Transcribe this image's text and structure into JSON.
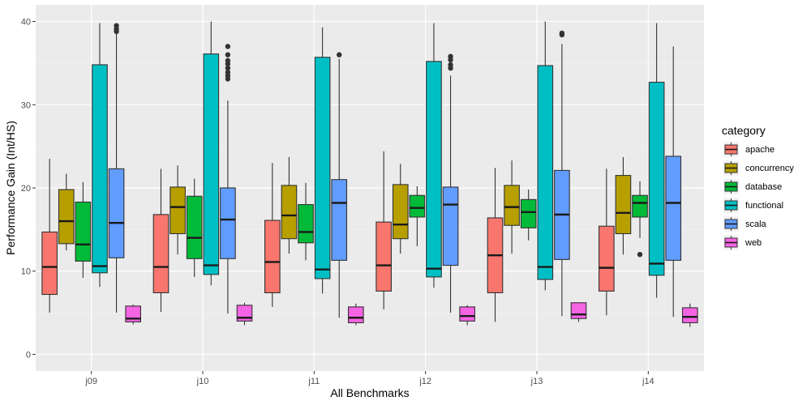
{
  "chart_data": {
    "type": "boxplot",
    "title": "",
    "xlabel": "All Benchmarks",
    "ylabel": "Performance Gain (Int/HS)",
    "ylim": [
      -2,
      42
    ],
    "yticks": [
      0,
      10,
      20,
      30,
      40
    ],
    "grid": true,
    "legend_position": "right",
    "legend_title": "category",
    "categories": [
      "j09",
      "j10",
      "j11",
      "j12",
      "j13",
      "j14"
    ],
    "series": [
      {
        "name": "apache",
        "color": "#F8766D",
        "boxes": [
          {
            "min": 5.0,
            "q1": 7.2,
            "median": 10.5,
            "q3": 14.7,
            "max": 23.5,
            "outliers": []
          },
          {
            "min": 5.1,
            "q1": 7.4,
            "median": 10.5,
            "q3": 16.8,
            "max": 22.3,
            "outliers": []
          },
          {
            "min": 5.7,
            "q1": 7.4,
            "median": 11.1,
            "q3": 16.1,
            "max": 23.0,
            "outliers": []
          },
          {
            "min": 5.4,
            "q1": 7.6,
            "median": 10.7,
            "q3": 15.9,
            "max": 24.4,
            "outliers": []
          },
          {
            "min": 3.9,
            "q1": 7.4,
            "median": 11.9,
            "q3": 16.4,
            "max": 22.4,
            "outliers": []
          },
          {
            "min": 4.7,
            "q1": 7.6,
            "median": 10.4,
            "q3": 15.4,
            "max": 22.3,
            "outliers": []
          }
        ]
      },
      {
        "name": "concurrency",
        "color": "#B79F00",
        "boxes": [
          {
            "min": 12.5,
            "q1": 13.3,
            "median": 16.0,
            "q3": 19.8,
            "max": 21.7,
            "outliers": []
          },
          {
            "min": 12.0,
            "q1": 14.5,
            "median": 17.7,
            "q3": 20.1,
            "max": 22.7,
            "outliers": []
          },
          {
            "min": 12.1,
            "q1": 13.9,
            "median": 16.7,
            "q3": 20.3,
            "max": 23.7,
            "outliers": []
          },
          {
            "min": 12.1,
            "q1": 13.9,
            "median": 15.6,
            "q3": 20.4,
            "max": 22.9,
            "outliers": []
          },
          {
            "min": 12.1,
            "q1": 15.5,
            "median": 17.7,
            "q3": 20.3,
            "max": 23.3,
            "outliers": []
          },
          {
            "min": 12.0,
            "q1": 14.5,
            "median": 17.0,
            "q3": 21.5,
            "max": 23.7,
            "outliers": []
          }
        ]
      },
      {
        "name": "database",
        "color": "#00BA38",
        "boxes": [
          {
            "min": 9.2,
            "q1": 11.2,
            "median": 13.2,
            "q3": 18.3,
            "max": 20.7,
            "outliers": []
          },
          {
            "min": 9.3,
            "q1": 11.5,
            "median": 14.0,
            "q3": 19.0,
            "max": 21.1,
            "outliers": []
          },
          {
            "min": 11.3,
            "q1": 13.4,
            "median": 14.7,
            "q3": 18.0,
            "max": 20.6,
            "outliers": []
          },
          {
            "min": 13.0,
            "q1": 16.5,
            "median": 17.6,
            "q3": 19.1,
            "max": 20.2,
            "outliers": []
          },
          {
            "min": 13.7,
            "q1": 15.2,
            "median": 17.1,
            "q3": 18.6,
            "max": 19.8,
            "outliers": []
          },
          {
            "min": 14.0,
            "q1": 16.5,
            "median": 18.2,
            "q3": 19.1,
            "max": 20.8,
            "outliers": [
              12.0
            ]
          }
        ]
      },
      {
        "name": "functional",
        "color": "#00BFC4",
        "boxes": [
          {
            "min": 8.1,
            "q1": 9.8,
            "median": 10.6,
            "q3": 34.8,
            "max": 39.8,
            "outliers": []
          },
          {
            "min": 8.3,
            "q1": 9.6,
            "median": 10.7,
            "q3": 36.1,
            "max": 40.0,
            "outliers": []
          },
          {
            "min": 7.3,
            "q1": 9.1,
            "median": 10.2,
            "q3": 35.7,
            "max": 39.3,
            "outliers": []
          },
          {
            "min": 8.0,
            "q1": 9.3,
            "median": 10.3,
            "q3": 35.2,
            "max": 39.8,
            "outliers": []
          },
          {
            "min": 7.7,
            "q1": 9.0,
            "median": 10.5,
            "q3": 34.7,
            "max": 40.0,
            "outliers": []
          },
          {
            "min": 6.8,
            "q1": 9.5,
            "median": 10.9,
            "q3": 32.7,
            "max": 39.8,
            "outliers": []
          }
        ]
      },
      {
        "name": "scala",
        "color": "#619CFF",
        "boxes": [
          {
            "min": 5.0,
            "q1": 11.6,
            "median": 15.8,
            "q3": 22.3,
            "max": 38.5,
            "outliers": [
              38.8,
              39.1,
              39.5
            ]
          },
          {
            "min": 4.9,
            "q1": 11.5,
            "median": 16.2,
            "q3": 20.0,
            "max": 30.5,
            "outliers": [
              33.1,
              33.5,
              33.9,
              34.4,
              34.9,
              35.3,
              36.0,
              37.0
            ]
          },
          {
            "min": 4.4,
            "q1": 11.3,
            "median": 18.2,
            "q3": 21.0,
            "max": 35.5,
            "outliers": [
              36.0
            ]
          },
          {
            "min": 5.0,
            "q1": 10.7,
            "median": 18.0,
            "q3": 20.1,
            "max": 33.5,
            "outliers": [
              34.4,
              34.8,
              35.4,
              35.8
            ]
          },
          {
            "min": 4.6,
            "q1": 11.4,
            "median": 16.8,
            "q3": 22.1,
            "max": 37.3,
            "outliers": [
              38.4,
              38.6
            ]
          },
          {
            "min": 4.5,
            "q1": 11.3,
            "median": 18.2,
            "q3": 23.8,
            "max": 37.0,
            "outliers": []
          }
        ]
      },
      {
        "name": "web",
        "color": "#F564E3",
        "boxes": [
          {
            "min": 3.6,
            "q1": 3.9,
            "median": 4.3,
            "q3": 5.8,
            "max": 6.0,
            "outliers": []
          },
          {
            "min": 3.5,
            "q1": 4.0,
            "median": 4.4,
            "q3": 5.9,
            "max": 6.2,
            "outliers": []
          },
          {
            "min": 3.5,
            "q1": 3.8,
            "median": 4.4,
            "q3": 5.7,
            "max": 6.1,
            "outliers": []
          },
          {
            "min": 3.5,
            "q1": 4.0,
            "median": 4.6,
            "q3": 5.7,
            "max": 5.9,
            "outliers": []
          },
          {
            "min": 3.9,
            "q1": 4.3,
            "median": 4.8,
            "q3": 6.2,
            "max": 6.2,
            "outliers": []
          },
          {
            "min": 3.3,
            "q1": 3.8,
            "median": 4.5,
            "q3": 5.6,
            "max": 6.1,
            "outliers": []
          }
        ]
      }
    ]
  }
}
